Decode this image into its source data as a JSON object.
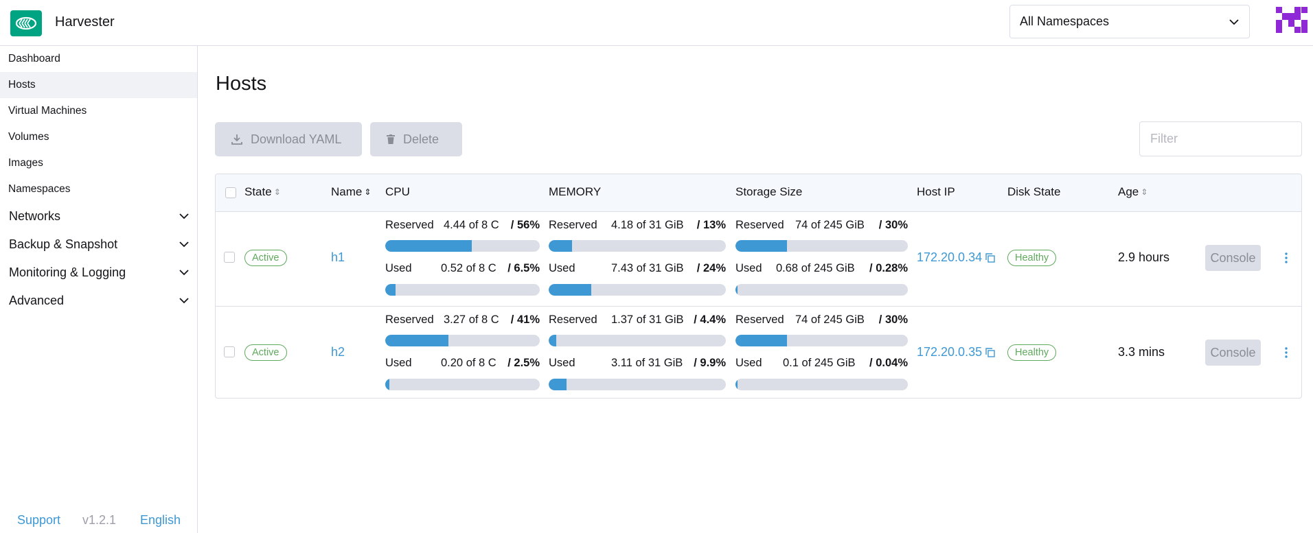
{
  "app": {
    "title": "Harvester",
    "brand_color": "#00a483",
    "accent_color": "#3d98d3",
    "logo_icon": "harvester-logo"
  },
  "header": {
    "namespace_select": {
      "value": "All Namespaces",
      "icon": "chevron-down-icon"
    },
    "avatar_icon": "user-avatar-icon"
  },
  "sidebar": {
    "items": [
      {
        "label": "Dashboard",
        "active": false
      },
      {
        "label": "Hosts",
        "active": true
      },
      {
        "label": "Virtual Machines",
        "active": false
      },
      {
        "label": "Volumes",
        "active": false
      },
      {
        "label": "Images",
        "active": false
      },
      {
        "label": "Namespaces",
        "active": false
      }
    ],
    "groups": [
      {
        "label": "Networks"
      },
      {
        "label": "Backup & Snapshot"
      },
      {
        "label": "Monitoring & Logging"
      },
      {
        "label": "Advanced"
      }
    ],
    "footer": {
      "support": "Support",
      "version": "v1.2.1",
      "language": "English"
    }
  },
  "main": {
    "title": "Hosts",
    "toolbar": {
      "download_yaml": "Download YAML",
      "delete": "Delete",
      "filter_placeholder": "Filter"
    },
    "table": {
      "columns": {
        "state": "State",
        "name": "Name",
        "cpu": "CPU",
        "memory": "MEMORY",
        "storage": "Storage Size",
        "host_ip": "Host IP",
        "disk_state": "Disk State",
        "age": "Age"
      },
      "rows": [
        {
          "state": "Active",
          "name": "h1",
          "cpu": {
            "reserved": {
              "label": "Reserved",
              "value": "4.44 of 8 C",
              "pct": "/ 56%",
              "fraction": 0.56
            },
            "used": {
              "label": "Used",
              "value": "0.52 of 8 C",
              "pct": "/ 6.5%",
              "fraction": 0.065
            }
          },
          "memory": {
            "reserved": {
              "label": "Reserved",
              "value": "4.18 of 31 GiB",
              "pct": "/ 13%",
              "fraction": 0.13
            },
            "used": {
              "label": "Used",
              "value": "7.43 of 31 GiB",
              "pct": "/ 24%",
              "fraction": 0.24
            }
          },
          "storage": {
            "reserved": {
              "label": "Reserved",
              "value": "74 of 245 GiB",
              "pct": "/ 30%",
              "fraction": 0.3
            },
            "used": {
              "label": "Used",
              "value": "0.68 of 245 GiB",
              "pct": "/ 0.28%",
              "fraction": 0.0028
            }
          },
          "host_ip": "172.20.0.34",
          "disk_state": "Healthy",
          "age": "2.9 hours",
          "console": "Console"
        },
        {
          "state": "Active",
          "name": "h2",
          "cpu": {
            "reserved": {
              "label": "Reserved",
              "value": "3.27 of 8 C",
              "pct": "/ 41%",
              "fraction": 0.41
            },
            "used": {
              "label": "Used",
              "value": "0.20 of 8 C",
              "pct": "/ 2.5%",
              "fraction": 0.025
            }
          },
          "memory": {
            "reserved": {
              "label": "Reserved",
              "value": "1.37 of 31 GiB",
              "pct": "/ 4.4%",
              "fraction": 0.044
            },
            "used": {
              "label": "Used",
              "value": "3.11 of 31 GiB",
              "pct": "/ 9.9%",
              "fraction": 0.099
            }
          },
          "storage": {
            "reserved": {
              "label": "Reserved",
              "value": "74 of 245 GiB",
              "pct": "/ 30%",
              "fraction": 0.3
            },
            "used": {
              "label": "Used",
              "value": "0.1 of 245 GiB",
              "pct": "/ 0.04%",
              "fraction": 0.0004
            }
          },
          "host_ip": "172.20.0.35",
          "disk_state": "Healthy",
          "age": "3.3 mins",
          "console": "Console"
        }
      ]
    }
  }
}
